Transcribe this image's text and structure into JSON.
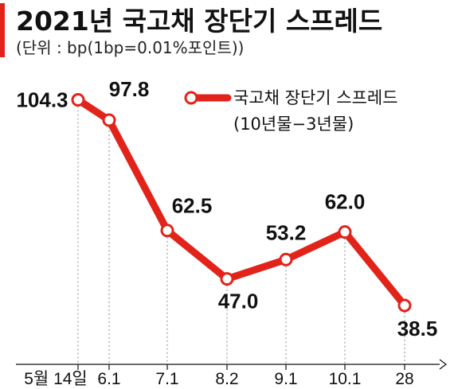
{
  "title": "2021년 국고채 장단기 스프레드",
  "subtitle": "(단위 : bp(1bp=0.01%포인트))",
  "accent_color": "#e2231a",
  "chart_data": {
    "type": "line",
    "title": "2021년 국고채 장단기 스프레드",
    "unit": "(단위 : bp(1bp=0.01%포인트))",
    "categories": [
      "5월 14일",
      "6.1",
      "7.1",
      "8.2",
      "9.1",
      "10.1",
      "28"
    ],
    "series": [
      {
        "name": "국고채 장단기 스프레드",
        "name_sub": "(10년물−3년물)",
        "color": "#e2231a",
        "values": [
          104.3,
          97.8,
          62.5,
          47.0,
          53.2,
          62.0,
          38.5
        ],
        "labels": [
          "104.3",
          "97.8",
          "62.5",
          "47.0",
          "53.2",
          "62.0",
          "38.5"
        ]
      }
    ],
    "legend": "top-right",
    "grid": false,
    "drop_lines": true
  }
}
